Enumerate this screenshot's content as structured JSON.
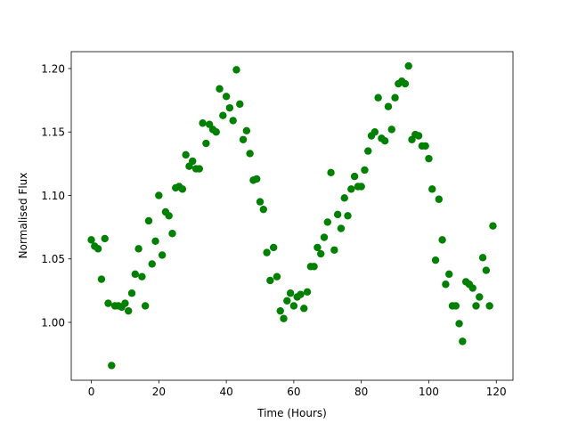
{
  "chart_data": {
    "type": "scatter",
    "xlabel": "Time (Hours)",
    "ylabel": "Normalised Flux",
    "color": "#008000",
    "x": [
      0,
      1,
      2,
      3,
      4,
      5,
      6,
      7,
      8,
      9,
      10,
      11,
      12,
      13,
      14,
      15,
      16,
      17,
      18,
      19,
      20,
      21,
      22,
      23,
      24,
      25,
      26,
      27,
      28,
      29,
      30,
      31,
      32,
      33,
      34,
      35,
      36,
      37,
      38,
      39,
      40,
      41,
      42,
      43,
      44,
      45,
      46,
      47,
      48,
      49,
      50,
      51,
      52,
      53,
      54,
      55,
      56,
      57,
      58,
      59,
      60,
      61,
      62,
      63,
      64,
      65,
      66,
      67,
      68,
      69,
      70,
      71,
      72,
      73,
      74,
      75,
      76,
      77,
      78,
      79,
      80,
      81,
      82,
      83,
      84,
      85,
      86,
      87,
      88,
      89,
      90,
      91,
      92,
      93,
      94,
      95,
      96,
      97,
      98,
      99,
      100,
      101,
      102,
      103,
      104,
      105,
      106,
      107,
      108,
      109,
      110,
      111,
      112,
      113,
      114,
      115,
      116,
      117,
      118,
      119
    ],
    "values": [
      1.065,
      1.06,
      1.058,
      1.034,
      1.066,
      1.015,
      0.966,
      1.013,
      1.013,
      1.012,
      1.015,
      1.009,
      1.023,
      1.038,
      1.058,
      1.036,
      1.013,
      1.08,
      1.046,
      1.064,
      1.1,
      1.053,
      1.087,
      1.084,
      1.07,
      1.106,
      1.107,
      1.105,
      1.132,
      1.123,
      1.127,
      1.121,
      1.121,
      1.157,
      1.141,
      1.156,
      1.152,
      1.15,
      1.184,
      1.163,
      1.178,
      1.169,
      1.159,
      1.199,
      1.172,
      1.144,
      1.151,
      1.133,
      1.112,
      1.113,
      1.095,
      1.089,
      1.055,
      1.033,
      1.059,
      1.036,
      1.009,
      1.003,
      1.017,
      1.023,
      1.013,
      1.02,
      1.022,
      1.011,
      1.024,
      1.044,
      1.044,
      1.059,
      1.054,
      1.067,
      1.079,
      1.118,
      1.057,
      1.085,
      1.074,
      1.098,
      1.084,
      1.105,
      1.115,
      1.107,
      1.107,
      1.12,
      1.135,
      1.147,
      1.15,
      1.177,
      1.145,
      1.143,
      1.17,
      1.152,
      1.177,
      1.188,
      1.19,
      1.188,
      1.202,
      1.144,
      1.148,
      1.147,
      1.139,
      1.139,
      1.129,
      1.105,
      1.049,
      1.097,
      1.065,
      1.03,
      1.038,
      1.013,
      1.013,
      0.999,
      0.985,
      1.032,
      1.03,
      1.027,
      1.013,
      1.02,
      1.051,
      1.041,
      1.013,
      1.076
    ],
    "xlim": [
      -5.95,
      124.95
    ],
    "ylim": [
      0.9544,
      1.2133
    ],
    "xticks": [
      0,
      20,
      40,
      60,
      80,
      100,
      120
    ],
    "yticks": [
      {
        "value": 1.0,
        "label": "1.00"
      },
      {
        "value": 1.05,
        "label": "1.05"
      },
      {
        "value": 1.1,
        "label": "1.10"
      },
      {
        "value": 1.15,
        "label": "1.15"
      },
      {
        "value": 1.2,
        "label": "1.20"
      }
    ]
  }
}
